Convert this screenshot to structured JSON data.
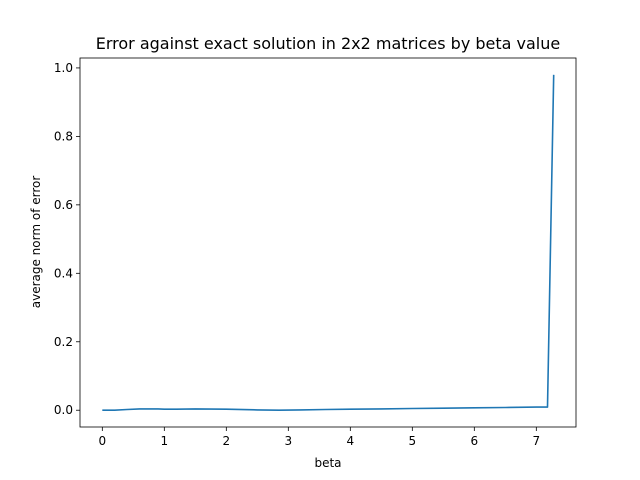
{
  "chart_data": {
    "type": "line",
    "title": "Error against exact solution in 2x2 matrices by beta value",
    "xlabel": "beta",
    "ylabel": "average norm of error",
    "xlim": [
      -0.36,
      7.64
    ],
    "ylim": [
      -0.049,
      1.029
    ],
    "xticks": [
      0,
      1,
      2,
      3,
      4,
      5,
      6,
      7
    ],
    "yticks": [
      0.0,
      0.2,
      0.4,
      0.6,
      0.8,
      1.0
    ],
    "xtick_labels": [
      "0",
      "1",
      "2",
      "3",
      "4",
      "5",
      "6",
      "7"
    ],
    "ytick_labels": [
      "0.0",
      "0.2",
      "0.4",
      "0.6",
      "0.8",
      "1.0"
    ],
    "grid": false,
    "series": [
      {
        "color": "#1f77b4",
        "x": [
          0.0,
          0.2,
          0.4,
          0.6,
          0.8,
          0.9,
          1.0,
          1.2,
          1.5,
          2.0,
          2.5,
          2.85,
          3.2,
          3.6,
          4.0,
          4.5,
          5.0,
          5.5,
          6.0,
          6.5,
          7.0,
          7.18,
          7.28
        ],
        "y": [
          0.0,
          0.0,
          0.002,
          0.004,
          0.004,
          0.004,
          0.003,
          0.003,
          0.004,
          0.003,
          0.001,
          0.0,
          0.001,
          0.002,
          0.003,
          0.004,
          0.005,
          0.006,
          0.007,
          0.008,
          0.009,
          0.009,
          0.98
        ]
      }
    ]
  }
}
